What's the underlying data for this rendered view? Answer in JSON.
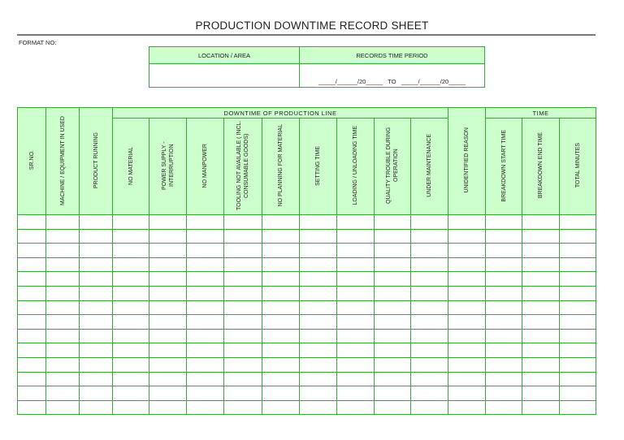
{
  "title": "PRODUCTION DOWNTIME RECORD SHEET",
  "format_label": "FORMAT NO:",
  "top_table": {
    "location_label": "LOCATION / AREA",
    "period_label": "RECORDS TIME PERIOD",
    "period_template": "_____/______/20_____   TO   _____/______/20_____"
  },
  "main_table": {
    "group_downtime": "DOWNTIME OF PRODUCTION LINE",
    "group_time": "TIME",
    "columns": [
      "SR.NO.",
      "MACHINE / EQUIPMENT IN USED",
      "PRODUCT RUNNING",
      "NO MATERIAL",
      "POWER SUPPLY - INTERRUPTION",
      "NO MANPOWER",
      "TOOLING NOT AVAILABLE ( INCL. CONSUMABLE GOODS)",
      "NO PLANNING FOR MATERIAL",
      "SETTING TIME",
      "LOADING / UNLOADING TIME",
      "QUALITY TROUBLE DURING OPERATION",
      "UNDER MAINTENANCE",
      "UNIDENTIFIED REASON",
      "BREAKDOWN START TIME",
      "BREAKDOWN END TIME",
      "TOTAL MINUTES"
    ],
    "row_count": 14
  },
  "colors": {
    "header_fill": "#ccffcc",
    "border": "#3aa63a"
  }
}
